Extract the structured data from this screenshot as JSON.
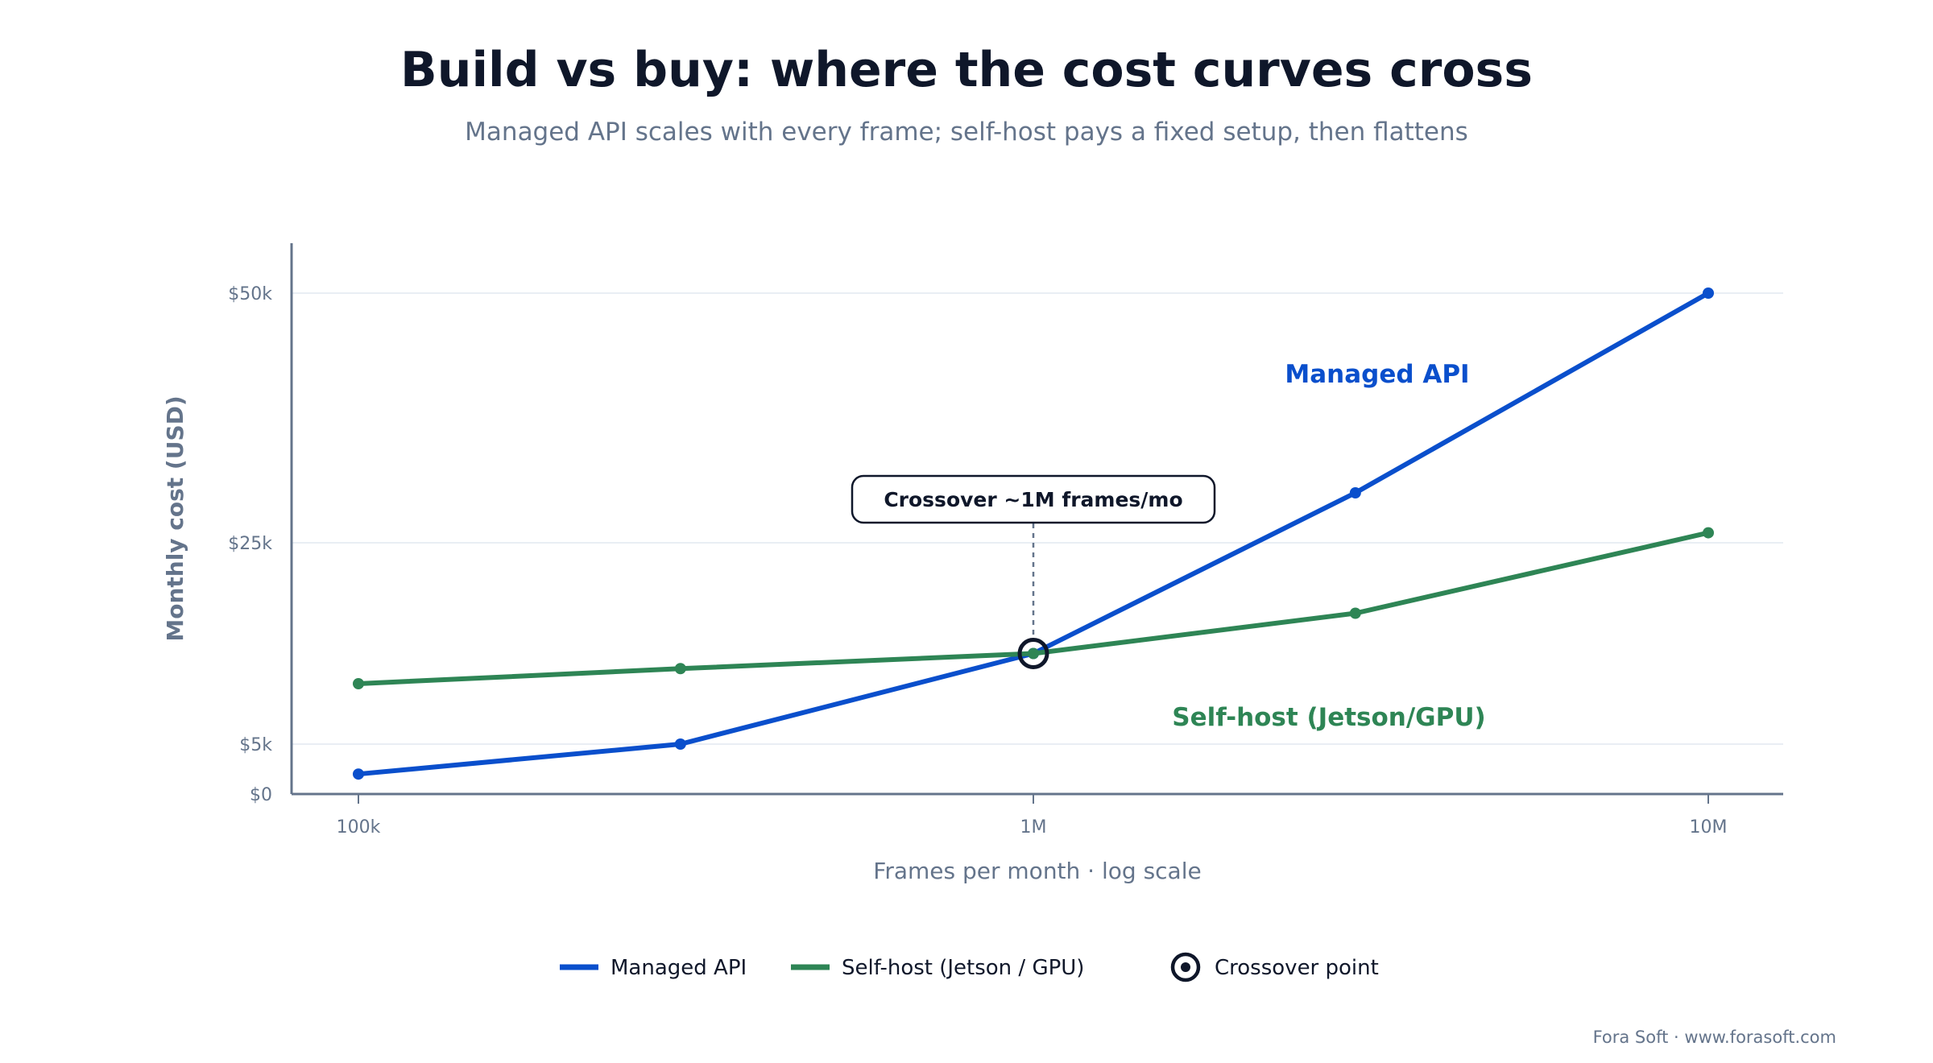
{
  "title": "Build vs buy: where the cost curves cross",
  "subtitle": "Managed API scales with every frame; self-host pays a fixed setup, then flattens",
  "footer": "Fora Soft · www.forasoft.com",
  "colors": {
    "managed": "#0a4fcc",
    "selfhost": "#2e8555",
    "axis": "#64748b",
    "text": "#0f172a",
    "grid": "#e2e8f0"
  },
  "chart_data": {
    "type": "line",
    "xlabel": "Frames per month · log scale",
    "ylabel": "Monthly cost (USD)",
    "xscale": "log",
    "xlim": [
      80000,
      12000000
    ],
    "ylim": [
      0,
      55000
    ],
    "x_ticks": [
      {
        "value": 100000,
        "label": "100k"
      },
      {
        "value": 1000000,
        "label": "1M"
      },
      {
        "value": 10000000,
        "label": "10M"
      }
    ],
    "y_ticks": [
      {
        "value": 0,
        "label": "$0"
      },
      {
        "value": 5000,
        "label": "$5k"
      },
      {
        "value": 25000,
        "label": "$25k"
      },
      {
        "value": 50000,
        "label": "$50k"
      }
    ],
    "grid": true,
    "series": [
      {
        "name": "Managed API",
        "label": "Managed API",
        "color": "#0a4fcc",
        "points": [
          [
            100000,
            2000
          ],
          [
            300000,
            5000
          ],
          [
            1000000,
            14000
          ],
          [
            3000000,
            30000
          ],
          [
            10000000,
            50000
          ]
        ]
      },
      {
        "name": "Self-host (Jetson/GPU)",
        "label": "Self-host (Jetson/GPU)",
        "color": "#2e8555",
        "points": [
          [
            100000,
            11000
          ],
          [
            300000,
            12500
          ],
          [
            1000000,
            14000
          ],
          [
            3000000,
            18000
          ],
          [
            10000000,
            26000
          ]
        ]
      }
    ],
    "crossover": {
      "x": 1000000,
      "y": 14000,
      "annotation": "Crossover ~1M frames/mo"
    },
    "legend": {
      "position": "bottom-center",
      "items": [
        {
          "label": "Managed API",
          "kind": "line",
          "color": "#0a4fcc"
        },
        {
          "label": "Self-host (Jetson / GPU)",
          "kind": "line",
          "color": "#2e8555"
        },
        {
          "label": "Crossover point",
          "kind": "ring",
          "color": "#0f172a"
        }
      ]
    }
  }
}
